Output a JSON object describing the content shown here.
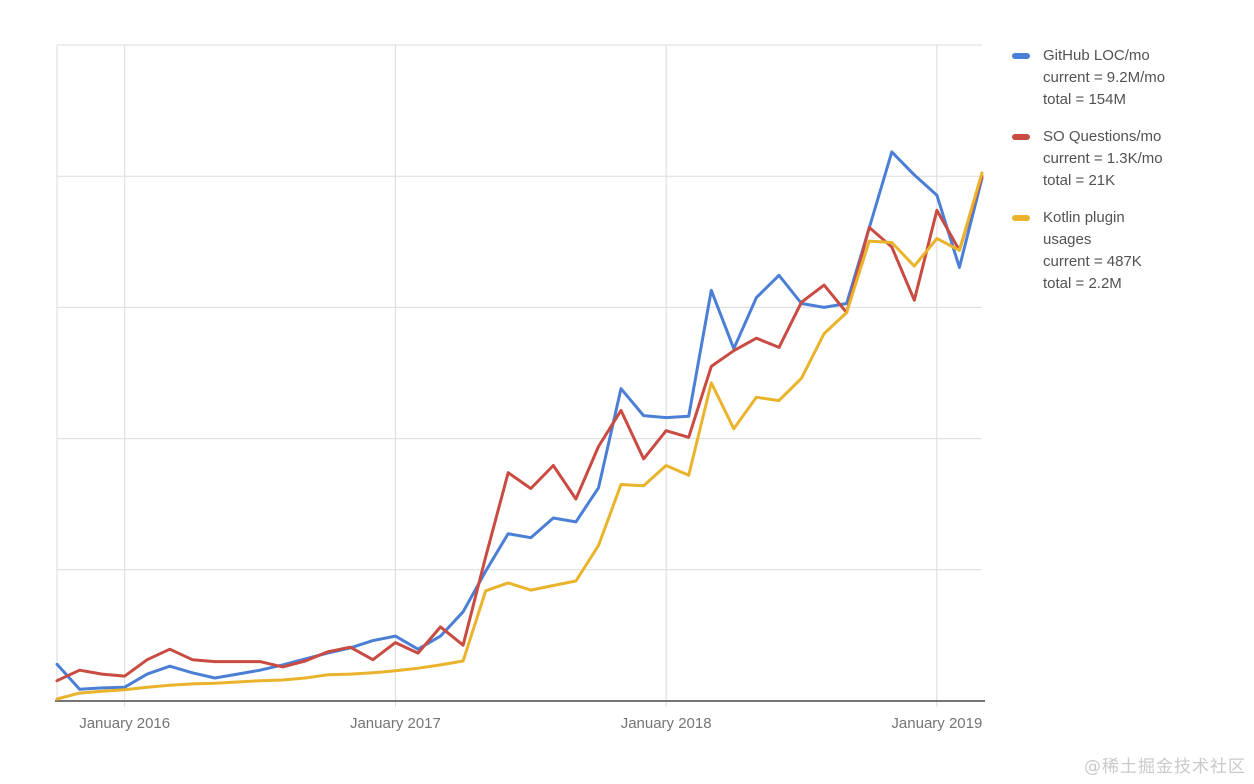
{
  "chart_data": {
    "type": "line",
    "title": "",
    "x": [
      "2015-10",
      "2015-11",
      "2015-12",
      "2016-01",
      "2016-02",
      "2016-03",
      "2016-04",
      "2016-05",
      "2016-06",
      "2016-07",
      "2016-08",
      "2016-09",
      "2016-10",
      "2016-11",
      "2016-12",
      "2017-01",
      "2017-02",
      "2017-03",
      "2017-04",
      "2017-05",
      "2017-06",
      "2017-07",
      "2017-08",
      "2017-09",
      "2017-10",
      "2017-11",
      "2017-12",
      "2018-01",
      "2018-02",
      "2018-03",
      "2018-04",
      "2018-05",
      "2018-06",
      "2018-07",
      "2018-08",
      "2018-09",
      "2018-10",
      "2018-11",
      "2018-12",
      "2019-01",
      "2019-02",
      "2019-03"
    ],
    "series": [
      {
        "name": "GitHub LOC/mo",
        "color": "#4B7FD6",
        "values": [
          5.6,
          1.8,
          2.0,
          2.1,
          4.1,
          5.3,
          4.3,
          3.5,
          4.1,
          4.7,
          5.5,
          6.4,
          7.3,
          8.1,
          9.2,
          9.9,
          7.9,
          9.9,
          13.6,
          19.8,
          25.5,
          24.9,
          27.9,
          27.3,
          32.5,
          47.6,
          43.5,
          43.2,
          43.4,
          62.6,
          53.7,
          61.5,
          64.9,
          60.6,
          60.0,
          60.6,
          72.1,
          83.7,
          80.2,
          77.1,
          66.1,
          79.7
        ]
      },
      {
        "name": "SO Questions/mo",
        "color": "#C94B42",
        "values": [
          3.1,
          4.7,
          4.1,
          3.8,
          6.3,
          7.9,
          6.3,
          6.0,
          6.0,
          6.0,
          5.2,
          6.1,
          7.5,
          8.2,
          6.3,
          8.9,
          7.3,
          11.3,
          8.5,
          22.0,
          34.8,
          32.4,
          35.9,
          30.8,
          38.8,
          44.3,
          36.9,
          41.2,
          40.2,
          51.0,
          53.4,
          55.3,
          53.9,
          60.8,
          63.4,
          59.2,
          72.2,
          69.2,
          61.1,
          74.8,
          68.7,
          80.0
        ]
      },
      {
        "name": "Kotlin plugin usages",
        "color": "#EAB32C",
        "values": [
          0.3,
          1.2,
          1.5,
          1.7,
          2.1,
          2.4,
          2.6,
          2.7,
          2.9,
          3.1,
          3.2,
          3.5,
          4.0,
          4.1,
          4.3,
          4.6,
          5.0,
          5.5,
          6.1,
          16.8,
          18.0,
          16.9,
          17.6,
          18.3,
          23.7,
          33.0,
          32.8,
          35.9,
          34.4,
          48.5,
          41.5,
          46.3,
          45.8,
          49.2,
          56.0,
          59.2,
          70.1,
          69.9,
          66.3,
          70.5,
          68.7,
          80.5
        ]
      }
    ],
    "x_ticks": {
      "labels": [
        "January 2016",
        "January 2017",
        "January 2018",
        "January 2019"
      ],
      "indices": [
        3,
        15,
        27,
        39
      ]
    },
    "ylim": [
      0,
      100
    ],
    "y_axis_labels_visible": false,
    "horizontal_gridlines_at": [
      0,
      20,
      40,
      60,
      80,
      100
    ],
    "grid": true,
    "legend_position": "right"
  },
  "legend": {
    "items": [
      {
        "color": "#4B7FD6",
        "lines": [
          "GitHub LOC/mo",
          "current = 9.2M/mo",
          "total = 154M"
        ]
      },
      {
        "color": "#C94B42",
        "lines": [
          "SO Questions/mo",
          "current = 1.3K/mo",
          "total = 21K"
        ]
      },
      {
        "color": "#EAB32C",
        "lines": [
          "Kotlin plugin",
          "usages",
          "current = 487K",
          "total = 2.2M"
        ]
      }
    ]
  },
  "watermark": "@稀土掘金技术社区",
  "colors": {
    "background": "#FFFFFF",
    "gridline": "#DBDBDB",
    "axis_line": "#757575",
    "axis_label": "#757575",
    "legend_text": "#525252",
    "watermark": "#C9C9C9"
  }
}
